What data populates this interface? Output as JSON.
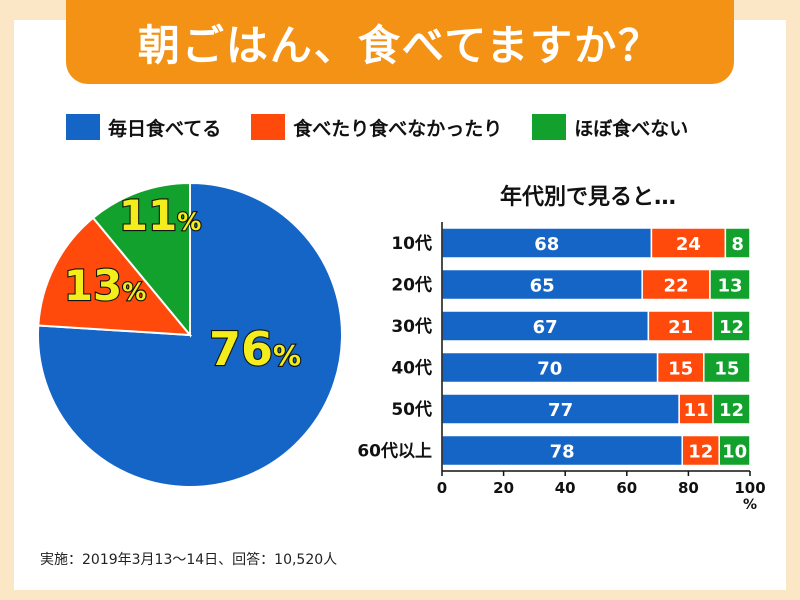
{
  "title": "朝ごはん、食べてますか？",
  "colors": {
    "every_day": "#1565c6",
    "sometimes": "#ff4a0c",
    "rarely": "#12a12c",
    "title_bg": "#f39214",
    "pie_label": "#f3ee1b"
  },
  "legend": [
    {
      "label": "毎日食べてる",
      "color": "#1565c6"
    },
    {
      "label": "食べたり食べなかったり",
      "color": "#ff4a0c"
    },
    {
      "label": "ほぼ食べない",
      "color": "#12a12c"
    }
  ],
  "chart_data": [
    {
      "type": "pie",
      "categories": [
        "毎日食べてる",
        "食べたり食べなかったり",
        "ほぼ食べない"
      ],
      "values": [
        76,
        13,
        11
      ],
      "unit": "%",
      "start": "12 o'clock",
      "direction": "clockwise"
    },
    {
      "type": "bar",
      "orientation": "horizontal",
      "stacked": true,
      "title": "年代別で見ると…",
      "categories": [
        "10代",
        "20代",
        "30代",
        "40代",
        "50代",
        "60代以上"
      ],
      "series": [
        {
          "name": "毎日食べてる",
          "values": [
            68,
            65,
            67,
            70,
            77,
            78
          ]
        },
        {
          "name": "食べたり食べなかったり",
          "values": [
            24,
            22,
            21,
            15,
            11,
            12
          ]
        },
        {
          "name": "ほぼ食べない",
          "values": [
            8,
            13,
            12,
            15,
            12,
            10
          ]
        }
      ],
      "xlim": [
        0,
        100
      ],
      "xticks": [
        "0",
        "20",
        "40",
        "60",
        "80",
        "100"
      ],
      "xunit": "%"
    }
  ],
  "note": "実施：2019年3月13～14日、回答：10,520人"
}
